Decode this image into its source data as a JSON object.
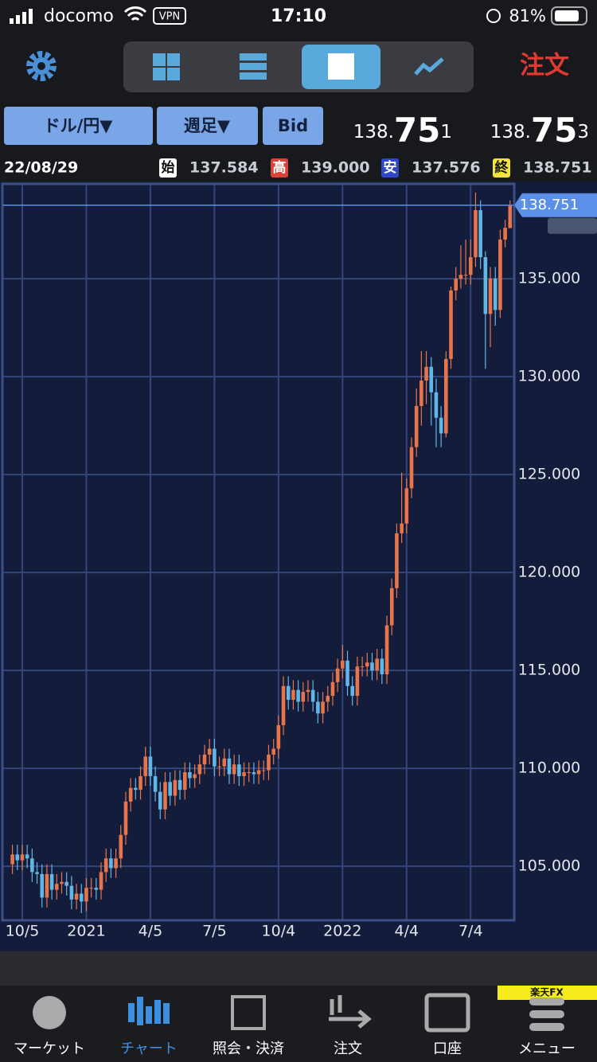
{
  "status_bar": {
    "carrier": "docomo",
    "vpn": "VPN",
    "time": "17:10",
    "battery": "81%"
  },
  "toolbar": {
    "order": "注文"
  },
  "selectors": [
    "ドル/円▼",
    "週足▼",
    "Bid"
  ],
  "quote": {
    "bid": [
      "138.",
      "75",
      "1"
    ],
    "ask": [
      "138.",
      "75",
      "3"
    ]
  },
  "ohlc_bar": {
    "date": "22/08/29",
    "items": [
      {
        "label": "始",
        "value": "137.584"
      },
      {
        "label": "高",
        "value": "139.000"
      },
      {
        "label": "安",
        "value": "137.576"
      },
      {
        "label": "終",
        "value": "138.751"
      }
    ]
  },
  "chart_data": {
    "type": "candlestick",
    "categories": [
      null,
      null,
      "10/5",
      null,
      null,
      null,
      null,
      null,
      null,
      null,
      null,
      null,
      null,
      null,
      null,
      "2021",
      null,
      null,
      null,
      null,
      null,
      null,
      null,
      null,
      null,
      null,
      null,
      null,
      "4/5",
      null,
      null,
      null,
      null,
      null,
      null,
      null,
      null,
      null,
      null,
      null,
      null,
      "7/5",
      null,
      null,
      null,
      null,
      null,
      null,
      null,
      null,
      null,
      null,
      null,
      null,
      "10/4",
      null,
      null,
      null,
      null,
      null,
      null,
      null,
      null,
      null,
      null,
      null,
      null,
      "2022",
      null,
      null,
      null,
      null,
      null,
      null,
      null,
      null,
      null,
      null,
      null,
      null,
      "4/4",
      null,
      null,
      null,
      null,
      null,
      null,
      null,
      null,
      null,
      null,
      null,
      null,
      "7/4",
      null,
      null,
      null,
      null,
      null,
      null,
      null,
      null
    ],
    "open": [
      105.1,
      105.6,
      105.3,
      105.6,
      105.4,
      104.7,
      104.6,
      103.4,
      104.6,
      103.8,
      104.1,
      104.2,
      104.0,
      103.3,
      103.6,
      103.2,
      103.9,
      103.9,
      103.8,
      104.7,
      105.4,
      104.9,
      105.4,
      106.6,
      108.3,
      109.0,
      108.9,
      109.6,
      110.6,
      109.6,
      108.8,
      107.9,
      109.3,
      108.6,
      109.4,
      108.9,
      109.8,
      109.5,
      109.7,
      110.2,
      110.7,
      111.0,
      110.1,
      110.1,
      110.5,
      109.7,
      110.2,
      109.6,
      109.8,
      109.8,
      109.7,
      109.9,
      109.9,
      110.7,
      111.0,
      112.2,
      114.2,
      113.5,
      114.0,
      113.4,
      113.9,
      114.0,
      113.4,
      112.8,
      113.4,
      113.7,
      114.4,
      115.1,
      115.5,
      114.2,
      113.7,
      115.2,
      115.2,
      115.4,
      115.0,
      115.6,
      114.8,
      117.3,
      119.2,
      122.0,
      122.5,
      124.3,
      126.4,
      128.5,
      129.8,
      130.5,
      129.2,
      127.9,
      127.1,
      130.9,
      134.4,
      135.0,
      135.2,
      135.2,
      136.1,
      138.5,
      136.1,
      133.2,
      135.0,
      133.4,
      137.0,
      137.584
    ],
    "high": [
      106.1,
      106.1,
      106.1,
      106.1,
      105.9,
      105.2,
      105.1,
      105.1,
      105.1,
      104.6,
      104.7,
      104.7,
      104.5,
      104.1,
      104.1,
      104.4,
      104.4,
      104.4,
      105.2,
      105.9,
      105.9,
      105.9,
      107.1,
      108.8,
      109.5,
      109.5,
      110.1,
      111.1,
      111.1,
      110.1,
      109.3,
      109.8,
      109.8,
      109.9,
      109.9,
      110.3,
      110.3,
      110.2,
      110.7,
      111.2,
      111.5,
      111.5,
      110.6,
      111.0,
      111.0,
      110.7,
      110.7,
      110.3,
      110.3,
      110.3,
      110.4,
      110.4,
      111.2,
      111.5,
      112.7,
      114.7,
      114.7,
      114.5,
      114.5,
      114.4,
      114.5,
      114.5,
      113.9,
      113.9,
      114.2,
      114.9,
      115.6,
      116.3,
      116.0,
      114.7,
      115.7,
      115.7,
      115.9,
      115.9,
      116.1,
      116.1,
      117.8,
      119.7,
      122.5,
      125.1,
      124.8,
      126.9,
      129.4,
      131.3,
      131.3,
      131.0,
      129.9,
      128.5,
      131.3,
      134.6,
      135.6,
      136.7,
      137.0,
      137.0,
      139.4,
      139.0,
      136.4,
      135.6,
      135.6,
      137.5,
      138.0,
      139.0
    ],
    "low": [
      104.6,
      104.8,
      104.8,
      104.9,
      104.2,
      104.1,
      102.9,
      102.9,
      103.3,
      103.3,
      103.6,
      103.5,
      102.8,
      102.8,
      102.6,
      102.7,
      103.4,
      103.3,
      103.3,
      104.2,
      104.4,
      104.4,
      104.9,
      106.1,
      107.8,
      108.4,
      108.4,
      109.1,
      109.1,
      108.3,
      107.4,
      107.4,
      108.1,
      108.1,
      108.4,
      108.4,
      109.0,
      109.0,
      109.2,
      109.7,
      110.2,
      109.6,
      109.6,
      109.6,
      109.2,
      109.2,
      109.1,
      109.1,
      109.3,
      109.2,
      109.2,
      109.4,
      109.4,
      110.2,
      110.5,
      111.7,
      113.0,
      113.0,
      112.9,
      112.9,
      113.4,
      112.9,
      112.3,
      112.3,
      112.9,
      113.2,
      113.9,
      114.6,
      113.7,
      113.2,
      113.2,
      114.7,
      114.7,
      114.5,
      114.5,
      114.3,
      114.3,
      116.8,
      118.7,
      121.5,
      122.0,
      123.8,
      125.9,
      127.5,
      128.6,
      127.5,
      126.4,
      126.4,
      126.9,
      130.4,
      133.9,
      134.5,
      134.7,
      134.7,
      135.6,
      135.5,
      130.4,
      131.5,
      132.6,
      133.0,
      136.6,
      137.576
    ],
    "close": [
      105.6,
      105.3,
      105.6,
      105.4,
      104.7,
      104.6,
      103.4,
      104.6,
      103.8,
      104.1,
      104.2,
      104.0,
      103.3,
      103.6,
      103.2,
      103.9,
      103.9,
      103.8,
      104.7,
      105.4,
      104.9,
      105.4,
      106.6,
      108.3,
      109.0,
      108.9,
      109.6,
      110.6,
      109.6,
      108.8,
      107.9,
      109.3,
      108.6,
      109.4,
      108.9,
      109.8,
      109.5,
      109.7,
      110.2,
      110.7,
      111.0,
      110.1,
      110.1,
      110.5,
      109.7,
      110.2,
      109.6,
      109.8,
      109.8,
      109.7,
      109.9,
      109.9,
      110.7,
      111.0,
      112.2,
      114.2,
      113.5,
      114.0,
      113.4,
      113.9,
      114.0,
      113.4,
      112.8,
      113.4,
      113.7,
      114.4,
      115.1,
      115.5,
      114.2,
      113.7,
      115.2,
      115.2,
      115.4,
      115.0,
      115.6,
      114.8,
      117.3,
      119.2,
      122.0,
      122.5,
      124.3,
      126.4,
      128.5,
      129.8,
      130.5,
      129.2,
      127.9,
      127.1,
      130.9,
      134.4,
      135.0,
      135.2,
      135.2,
      136.1,
      138.5,
      136.1,
      133.2,
      135.0,
      133.4,
      137.0,
      137.6,
      138.751
    ],
    "up_color": "#e8744a",
    "down_color": "#62b6e4",
    "grid": true,
    "ylim": [
      102.28,
      139.8
    ],
    "yticks": [
      {
        "value": 105,
        "label": "105.000"
      },
      {
        "value": 110,
        "label": "110.000"
      },
      {
        "value": 115,
        "label": "115.000"
      },
      {
        "value": 120,
        "label": "120.000"
      },
      {
        "value": 125,
        "label": "125.000"
      },
      {
        "value": 130,
        "label": "130.000"
      },
      {
        "value": 135,
        "label": "135.000"
      }
    ]
  },
  "tab_bar": {
    "badge": "楽天FX",
    "tabs": [
      "マーケット",
      "チャート",
      "照会・決済",
      "注文",
      "口座",
      "メニュー"
    ]
  }
}
